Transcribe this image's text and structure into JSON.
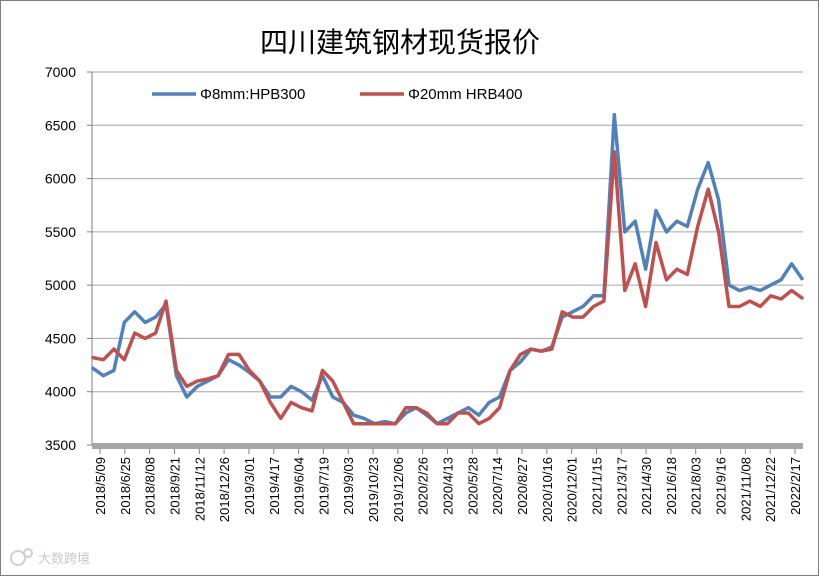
{
  "watermark": {
    "text": "大数跨境",
    "icon": "watermark-logo-icon"
  },
  "chart_data": {
    "type": "line",
    "title": "四川建筑钢材现货报价",
    "xlabel": "",
    "ylabel": "",
    "ylim": [
      3500,
      7000
    ],
    "yticks": [
      3500,
      4000,
      4500,
      5000,
      5500,
      6000,
      6500,
      7000
    ],
    "grid": true,
    "legend_position": "top-left",
    "x_tick_labels": [
      "2018/5/09",
      "2018/6/25",
      "2018/8/08",
      "2018/9/21",
      "2018/11/12",
      "2018/12/26",
      "2019/3/01",
      "2019/4/17",
      "2019/6/04",
      "2019/7/19",
      "2019/9/03",
      "2019/10/23",
      "2019/12/06",
      "2020/2/26",
      "2020/4/13",
      "2020/5/28",
      "2020/7/14",
      "2020/8/27",
      "2020/10/16",
      "2020/12/01",
      "2021/1/15",
      "2021/3/17",
      "2021/4/30",
      "2021/6/18",
      "2021/8/03",
      "2021/9/16",
      "2021/11/08",
      "2021/12/22",
      "2022/2/17"
    ],
    "series": [
      {
        "name": "Φ8mm:HPB300",
        "color": "#4f81bd",
        "values": [
          4220,
          4150,
          4200,
          4650,
          4750,
          4650,
          4700,
          4820,
          4150,
          3950,
          4050,
          4100,
          4150,
          4300,
          4250,
          4180,
          4100,
          3950,
          3950,
          4050,
          4000,
          3920,
          4150,
          3950,
          3900,
          3780,
          3750,
          3700,
          3720,
          3700,
          3800,
          3850,
          3780,
          3700,
          3750,
          3800,
          3850,
          3780,
          3900,
          3950,
          4200,
          4280,
          4400,
          4380,
          4420,
          4700,
          4750,
          4800,
          4900,
          4900,
          6600,
          5500,
          5600,
          5150,
          5700,
          5500,
          5600,
          5550,
          5900,
          6150,
          5800,
          5000,
          4950,
          4980,
          4950,
          5000,
          5050,
          5200,
          5060
        ]
      },
      {
        "name": "Φ20mm HRB400",
        "color": "#c0504d",
        "values": [
          4320,
          4300,
          4400,
          4300,
          4550,
          4500,
          4550,
          4850,
          4200,
          4050,
          4100,
          4120,
          4150,
          4350,
          4350,
          4200,
          4100,
          3900,
          3750,
          3900,
          3850,
          3820,
          4200,
          4100,
          3900,
          3700,
          3700,
          3700,
          3700,
          3700,
          3850,
          3850,
          3800,
          3700,
          3700,
          3800,
          3800,
          3700,
          3750,
          3850,
          4200,
          4350,
          4400,
          4380,
          4400,
          4750,
          4700,
          4700,
          4800,
          4850,
          6250,
          4950,
          5200,
          4800,
          5400,
          5050,
          5150,
          5100,
          5550,
          5900,
          5500,
          4800,
          4800,
          4850,
          4800,
          4900,
          4870,
          4950,
          4880
        ]
      }
    ]
  }
}
